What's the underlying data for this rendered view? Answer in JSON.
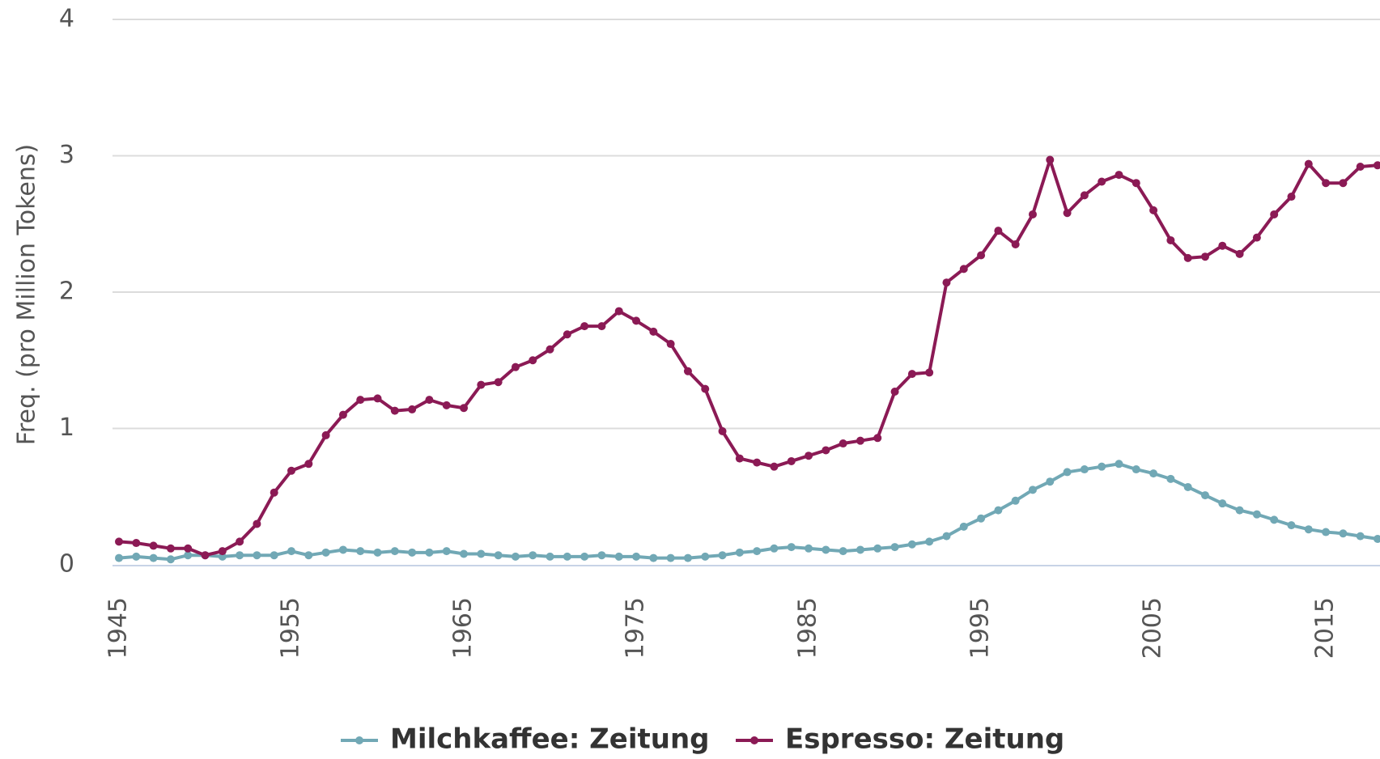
{
  "chart_data": {
    "type": "line",
    "y_label": "Freq. (pro Million Tokens)",
    "x": [
      1945,
      1946,
      1947,
      1948,
      1949,
      1950,
      1951,
      1952,
      1953,
      1954,
      1955,
      1956,
      1957,
      1958,
      1959,
      1960,
      1961,
      1962,
      1963,
      1964,
      1965,
      1966,
      1967,
      1968,
      1969,
      1970,
      1971,
      1972,
      1973,
      1974,
      1975,
      1976,
      1977,
      1978,
      1979,
      1980,
      1981,
      1982,
      1983,
      1984,
      1985,
      1986,
      1987,
      1988,
      1989,
      1990,
      1991,
      1992,
      1993,
      1994,
      1995,
      1996,
      1997,
      1998,
      1999,
      2000,
      2001,
      2002,
      2003,
      2004,
      2005,
      2006,
      2007,
      2008,
      2009,
      2010,
      2011,
      2012,
      2013,
      2014,
      2015,
      2016,
      2017,
      2018
    ],
    "series": [
      {
        "name": "Milchkaffee: Zeitung",
        "color": "#71a8b5",
        "values": [
          0.05,
          0.06,
          0.05,
          0.04,
          0.07,
          0.07,
          0.06,
          0.07,
          0.07,
          0.07,
          0.1,
          0.07,
          0.09,
          0.11,
          0.1,
          0.09,
          0.1,
          0.09,
          0.09,
          0.1,
          0.08,
          0.08,
          0.07,
          0.06,
          0.07,
          0.06,
          0.06,
          0.06,
          0.07,
          0.06,
          0.06,
          0.05,
          0.05,
          0.05,
          0.06,
          0.07,
          0.09,
          0.1,
          0.12,
          0.13,
          0.12,
          0.11,
          0.1,
          0.11,
          0.12,
          0.13,
          0.15,
          0.17,
          0.21,
          0.28,
          0.34,
          0.4,
          0.47,
          0.55,
          0.61,
          0.68,
          0.7,
          0.72,
          0.74,
          0.7,
          0.67,
          0.63,
          0.57,
          0.51,
          0.45,
          0.4,
          0.37,
          0.33,
          0.29,
          0.26,
          0.24,
          0.23,
          0.21,
          0.19
        ]
      },
      {
        "name": "Espresso: Zeitung",
        "color": "#8b1a55",
        "values": [
          0.17,
          0.16,
          0.14,
          0.12,
          0.12,
          0.07,
          0.1,
          0.17,
          0.3,
          0.53,
          0.69,
          0.74,
          0.95,
          1.1,
          1.21,
          1.22,
          1.13,
          1.14,
          1.21,
          1.17,
          1.15,
          1.32,
          1.34,
          1.45,
          1.5,
          1.58,
          1.69,
          1.75,
          1.75,
          1.86,
          1.79,
          1.71,
          1.62,
          1.42,
          1.29,
          0.98,
          0.78,
          0.75,
          0.72,
          0.76,
          0.8,
          0.84,
          0.89,
          0.91,
          0.93,
          1.27,
          1.4,
          1.41,
          2.07,
          2.17,
          2.27,
          2.45,
          2.35,
          2.57,
          2.97,
          2.58,
          2.71,
          2.81,
          2.86,
          2.8,
          2.6,
          2.38,
          2.25,
          2.26,
          2.34,
          2.28,
          2.4,
          2.57,
          2.7,
          2.94,
          2.8,
          2.8,
          2.92,
          2.93
        ]
      }
    ],
    "xlim": [
      1945,
      2018
    ],
    "xticks": [
      1945,
      1955,
      1965,
      1975,
      1985,
      1995,
      2005,
      2015
    ],
    "ylim": [
      0,
      4
    ],
    "yticks": [
      0,
      1,
      2,
      3,
      4
    ],
    "grid": true,
    "legend": "bottom"
  }
}
